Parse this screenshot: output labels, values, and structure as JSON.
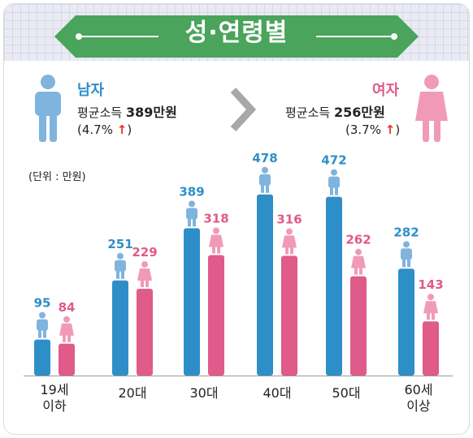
{
  "title": "성·연령별",
  "male": {
    "label": "남자",
    "income_prefix": "평균소득 ",
    "income_value": "389만원",
    "change": "(4.7%",
    "arrow": "↑",
    "change_close": ")"
  },
  "female": {
    "label": "여자",
    "income_prefix": "평균소득 ",
    "income_value": "256만원",
    "change": "(3.7%",
    "arrow": "↑",
    "change_close": ")"
  },
  "unit": "(단위 : 만원)",
  "colors": {
    "male": "#2e8fc8",
    "male_light": "#7fb4de",
    "female": "#e05a8a",
    "female_light": "#f19ab8",
    "banner": "#4aa45b",
    "arrow_up": "#e2342a",
    "chevron": "#a8a8a8"
  },
  "icons": [
    "male-person-icon",
    "female-person-icon",
    "chevron-right-icon",
    "up-arrow-icon"
  ],
  "chart_data": {
    "type": "bar",
    "categories": [
      "19세\n이하",
      "20대",
      "30대",
      "40대",
      "50대",
      "60세\n이상"
    ],
    "series": [
      {
        "name": "남자",
        "values": [
          95,
          251,
          389,
          478,
          472,
          282
        ]
      },
      {
        "name": "여자",
        "values": [
          84,
          229,
          318,
          316,
          262,
          143
        ]
      }
    ],
    "xlabel": "",
    "ylabel": "",
    "grid": false
  }
}
